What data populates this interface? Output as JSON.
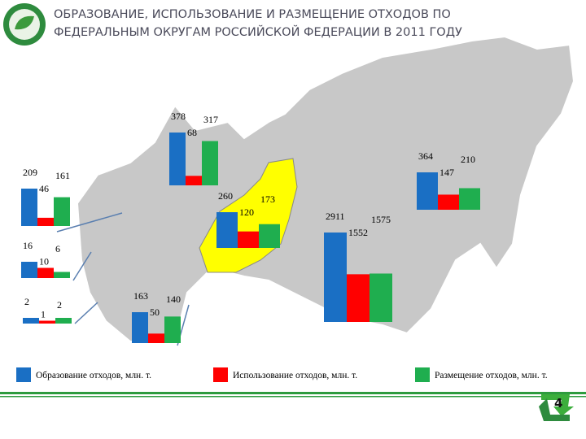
{
  "chart_data": {
    "type": "bar",
    "title": [
      "ОБРАЗОВАНИЕ, ИСПОЛЬЗОВАНИЕ И РАЗМЕЩЕНИЕ ОТХОДОВ ПО",
      "ФЕДЕРАЛЬНЫМ ОКРУГАМ РОССИЙСКОЙ ФЕДЕРАЦИИ В 2011 ГОДУ"
    ],
    "series": [
      {
        "name": "Образование отходов, млн. т.",
        "color": "#1a6fc4",
        "values": [
          378,
          209,
          16,
          2,
          163,
          260,
          2911,
          364
        ]
      },
      {
        "name": "Использование отходов, млн. т.",
        "color": "#ff0000",
        "values": [
          68,
          46,
          10,
          1,
          50,
          120,
          1552,
          147
        ]
      },
      {
        "name": "Размещение отходов, млн. т.",
        "color": "#1fae4f",
        "values": [
          317,
          161,
          6,
          2,
          140,
          173,
          1575,
          210
        ]
      }
    ]
  },
  "page_number": "4"
}
